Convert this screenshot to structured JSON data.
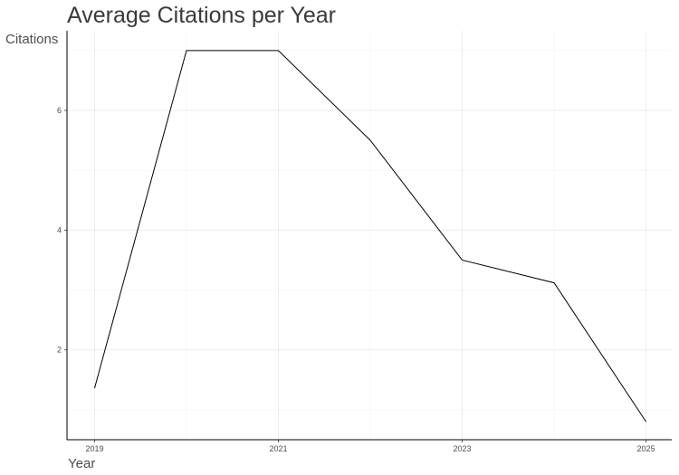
{
  "chart_data": {
    "type": "line",
    "title": "Average Citations per Year",
    "xlabel": "Year",
    "ylabel": "Citations",
    "x": [
      2019,
      2020,
      2021,
      2022,
      2023,
      2024,
      2025
    ],
    "series": [
      {
        "values": [
          1.36,
          7.0,
          7.0,
          5.5,
          3.5,
          3.12,
          0.8
        ]
      }
    ],
    "xlim": [
      2018.7,
      2025.28
    ],
    "ylim": [
      0.5,
      7.33
    ],
    "x_ticks": [
      2019,
      2021,
      2023,
      2025
    ],
    "y_ticks": [
      2,
      4,
      6
    ],
    "x_tick_labels": [
      "2019",
      "2021",
      "2023",
      "2025"
    ],
    "y_tick_labels": [
      "2",
      "4",
      "6"
    ],
    "grid": true,
    "legend": "none",
    "colors": {
      "line": "#000000",
      "grid": "#ebebeb",
      "text": "#4d4d4d",
      "title": "#3a3a3a"
    }
  }
}
